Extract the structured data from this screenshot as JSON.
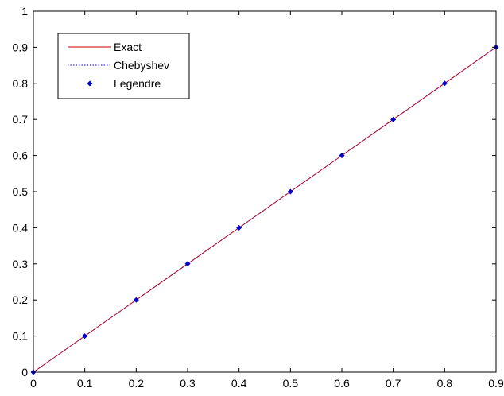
{
  "chart_data": {
    "type": "line",
    "title": "",
    "xlabel": "",
    "ylabel": "",
    "xlim": [
      0,
      0.9
    ],
    "ylim": [
      0,
      1
    ],
    "xticks": [
      "0",
      "0.1",
      "0.2",
      "0.3",
      "0.4",
      "0.5",
      "0.6",
      "0.7",
      "0.8",
      "0.9"
    ],
    "yticks": [
      "0",
      "0.1",
      "0.2",
      "0.3",
      "0.4",
      "0.5",
      "0.6",
      "0.7",
      "0.8",
      "0.9",
      "1"
    ],
    "grid": false,
    "legend_position": "top-left",
    "series": [
      {
        "name": "Exact",
        "style": "solid-line",
        "color": "#cc0000",
        "x": [
          0,
          0.1,
          0.2,
          0.3,
          0.4,
          0.5,
          0.6,
          0.7,
          0.8,
          0.9
        ],
        "y": [
          0,
          0.1,
          0.2,
          0.3,
          0.4,
          0.5,
          0.6,
          0.7,
          0.8,
          0.9
        ]
      },
      {
        "name": "Chebyshev",
        "style": "dotted-line",
        "color": "#0000ff",
        "x": [
          0,
          0.1,
          0.2,
          0.3,
          0.4,
          0.5,
          0.6,
          0.7,
          0.8,
          0.9
        ],
        "y": [
          0,
          0.1,
          0.2,
          0.3,
          0.4,
          0.5,
          0.6,
          0.7,
          0.8,
          0.9
        ]
      },
      {
        "name": "Legendre",
        "style": "markers",
        "color": "#0000cc",
        "x": [
          0,
          0.1,
          0.2,
          0.3,
          0.4,
          0.5,
          0.6,
          0.7,
          0.8,
          0.9
        ],
        "y": [
          0,
          0.1,
          0.2,
          0.3,
          0.4,
          0.5,
          0.6,
          0.7,
          0.8,
          0.9
        ]
      }
    ]
  }
}
